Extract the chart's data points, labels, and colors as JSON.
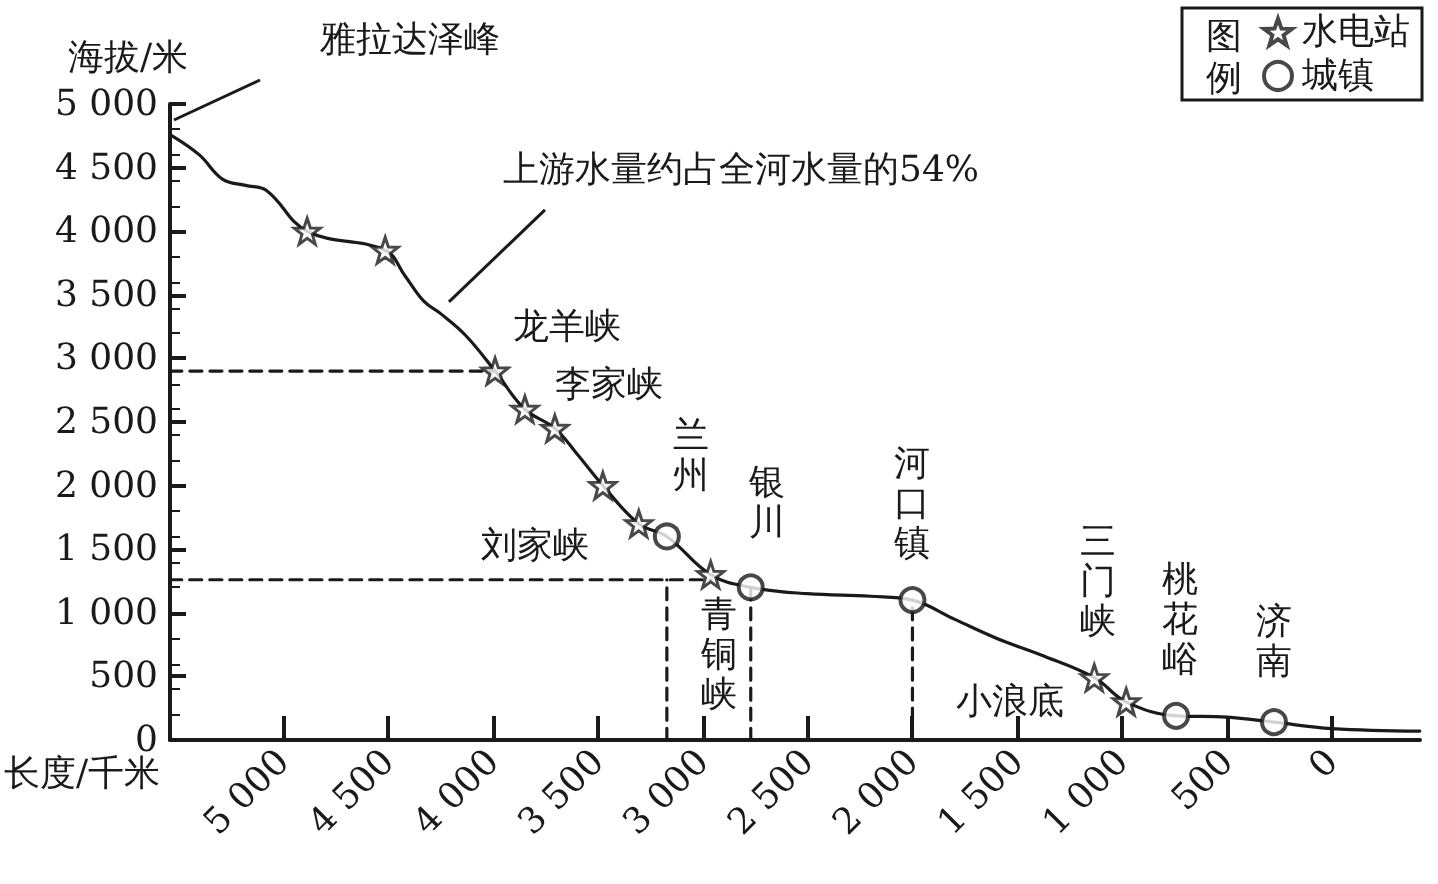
{
  "chart_data": {
    "type": "line",
    "xlabel": "长度/千米",
    "ylabel": "海拔/米",
    "legend_title": "图例",
    "legend": "top right",
    "grid": false,
    "xlim": [
      5540,
      -420
    ],
    "ylim": [
      0,
      5000
    ],
    "xticks": [
      {
        "value": 5000,
        "label": "5 000"
      },
      {
        "value": 4500,
        "label": "4 500"
      },
      {
        "value": 4000,
        "label": "4 000"
      },
      {
        "value": 3500,
        "label": "3 500"
      },
      {
        "value": 3000,
        "label": "3 000"
      },
      {
        "value": 2500,
        "label": "2 500"
      },
      {
        "value": 2000,
        "label": "2 000"
      },
      {
        "value": 1500,
        "label": "1 500"
      },
      {
        "value": 1000,
        "label": "1 000"
      },
      500,
      0
    ],
    "yticks": [
      0,
      500,
      {
        "value": 1000,
        "label": "1 000"
      },
      {
        "value": 1500,
        "label": "1 500"
      },
      {
        "value": 2000,
        "label": "2 000"
      },
      {
        "value": 2500,
        "label": "2 500"
      },
      {
        "value": 3000,
        "label": "3 000"
      },
      {
        "value": 3500,
        "label": "3 500"
      },
      {
        "value": 4000,
        "label": "4 000"
      },
      {
        "value": 4500,
        "label": "4 500"
      },
      {
        "value": 5000,
        "label": "5 000"
      }
    ],
    "series": [
      {
        "color": "#1a1a1a",
        "marker": "none",
        "line_style": "solid",
        "x": [
          5530,
          5400,
          5290,
          5180,
          5080,
          4886,
          4514,
          4420,
          4330,
          4248,
          4130,
          3990,
          3848,
          3705,
          3600,
          3476,
          3305,
          3171,
          2962,
          2771,
          2500,
          2200,
          2000,
          1800,
          1600,
          1390,
          1133,
          981,
          743,
          500,
          276,
          0,
          -419
        ],
        "values": [
          4750,
          4600,
          4410,
          4360,
          4320,
          4000,
          3850,
          3650,
          3450,
          3350,
          3180,
          2900,
          2600,
          2450,
          2250,
          2000,
          1700,
          1600,
          1300,
          1200,
          1150,
          1130,
          1100,
          950,
          800,
          670,
          490,
          300,
          190,
          180,
          140,
          90,
          70
        ]
      },
      {
        "type": "scatter",
        "name": "水电站",
        "color": "#1a1a1a",
        "marker": "star",
        "x": [
          4886,
          4514,
          3990,
          3848,
          3705,
          3476,
          3305,
          2962,
          1133,
          981
        ],
        "values": [
          4000,
          3850,
          2900,
          2600,
          2450,
          2000,
          1700,
          1300,
          490,
          300
        ]
      },
      {
        "type": "scatter",
        "name": "城镇",
        "color": "#1a1a1a",
        "marker": "circle",
        "x": [
          3171,
          2771,
          2000,
          743,
          276
        ],
        "values": [
          1600,
          1200,
          1100,
          190,
          140
        ]
      },
      {
        "type": "line",
        "color": "#1a1a1a",
        "marker": "none",
        "line_style": "dashed",
        "x": [
          5540,
          3990
        ],
        "values": [
          2900,
          2900
        ]
      },
      {
        "type": "line",
        "color": "#1a1a1a",
        "marker": "none",
        "line_style": "dashed",
        "x": [
          5540,
          2962
        ],
        "values": [
          1260,
          1260
        ]
      },
      {
        "type": "line",
        "color": "#1a1a1a",
        "marker": "none",
        "line_style": "dashed",
        "x": [
          3171,
          3171
        ],
        "values": [
          0,
          1260
        ]
      },
      {
        "type": "line",
        "color": "#1a1a1a",
        "marker": "none",
        "line_style": "dashed",
        "x": [
          2771,
          2771
        ],
        "values": [
          0,
          1200
        ]
      },
      {
        "type": "line",
        "color": "#1a1a1a",
        "marker": "none",
        "line_style": "dashed",
        "x": [
          2000,
          2000
        ],
        "values": [
          0,
          1100
        ]
      }
    ],
    "annotations": [
      "雅拉达泽峰",
      {
        "text": "上游水量约占全河水量的54%",
        "x": 4248,
        "y": 3350
      },
      {
        "text": "龙羊峡",
        "x": 3990,
        "y": 2900
      },
      {
        "text": "李家峡",
        "x": 3848,
        "y": 2600
      },
      {
        "text": "刘家峡",
        "x": 3305,
        "y": 1700
      },
      {
        "text": "兰州",
        "x": 3171,
        "y": 1600
      },
      {
        "text": "青铜峡",
        "x": 2962,
        "y": 1300
      },
      {
        "text": "银川",
        "x": 2771,
        "y": 1200
      },
      {
        "text": "河口镇",
        "x": 2000,
        "y": 1100
      },
      {
        "text": "三门峡",
        "x": 1133,
        "y": 490
      },
      {
        "text": "小浪底",
        "x": 981,
        "y": 300
      },
      {
        "text": "桃花峪",
        "x": 743,
        "y": 190
      },
      {
        "text": "济南",
        "x": 276,
        "y": 140
      }
    ]
  }
}
